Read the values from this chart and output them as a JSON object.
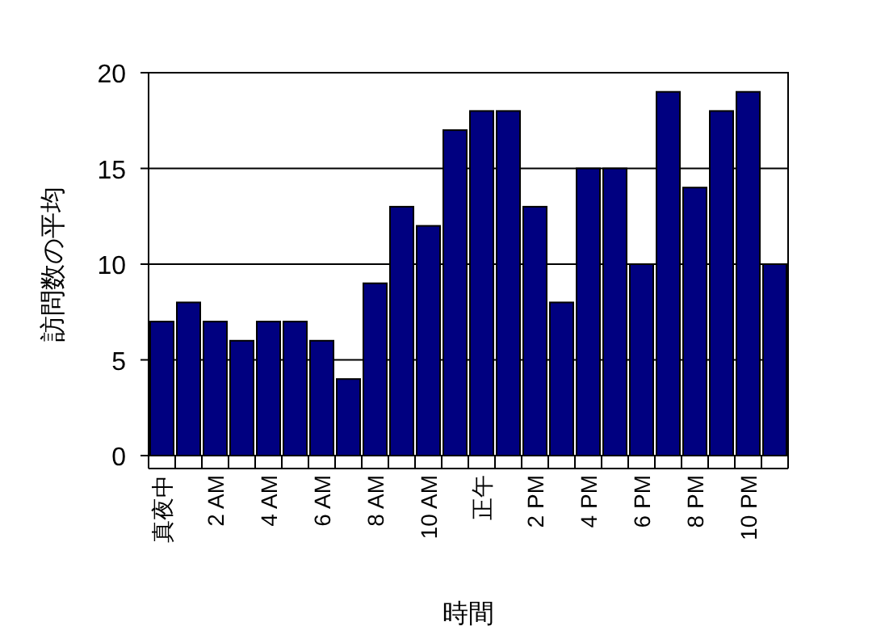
{
  "chart_data": {
    "type": "bar",
    "xlabel": "時間",
    "ylabel": "訪問数の平均",
    "categories": [
      "真夜中",
      null,
      "2 AM",
      null,
      "4 AM",
      null,
      "6 AM",
      null,
      "8 AM",
      null,
      "10 AM",
      null,
      "正午",
      null,
      "2 PM",
      null,
      "4 PM",
      null,
      "6 PM",
      null,
      "8 PM",
      null,
      "10 PM",
      null
    ],
    "values": [
      7,
      8,
      7,
      6,
      7,
      7,
      6,
      4,
      9,
      13,
      12,
      17,
      18,
      18,
      13,
      8,
      15,
      15,
      10,
      19,
      14,
      18,
      19,
      10
    ],
    "color": "#000080",
    "ylim": [
      0,
      20
    ],
    "yticks": [
      0,
      5,
      10,
      15,
      20
    ],
    "grid": "y"
  }
}
